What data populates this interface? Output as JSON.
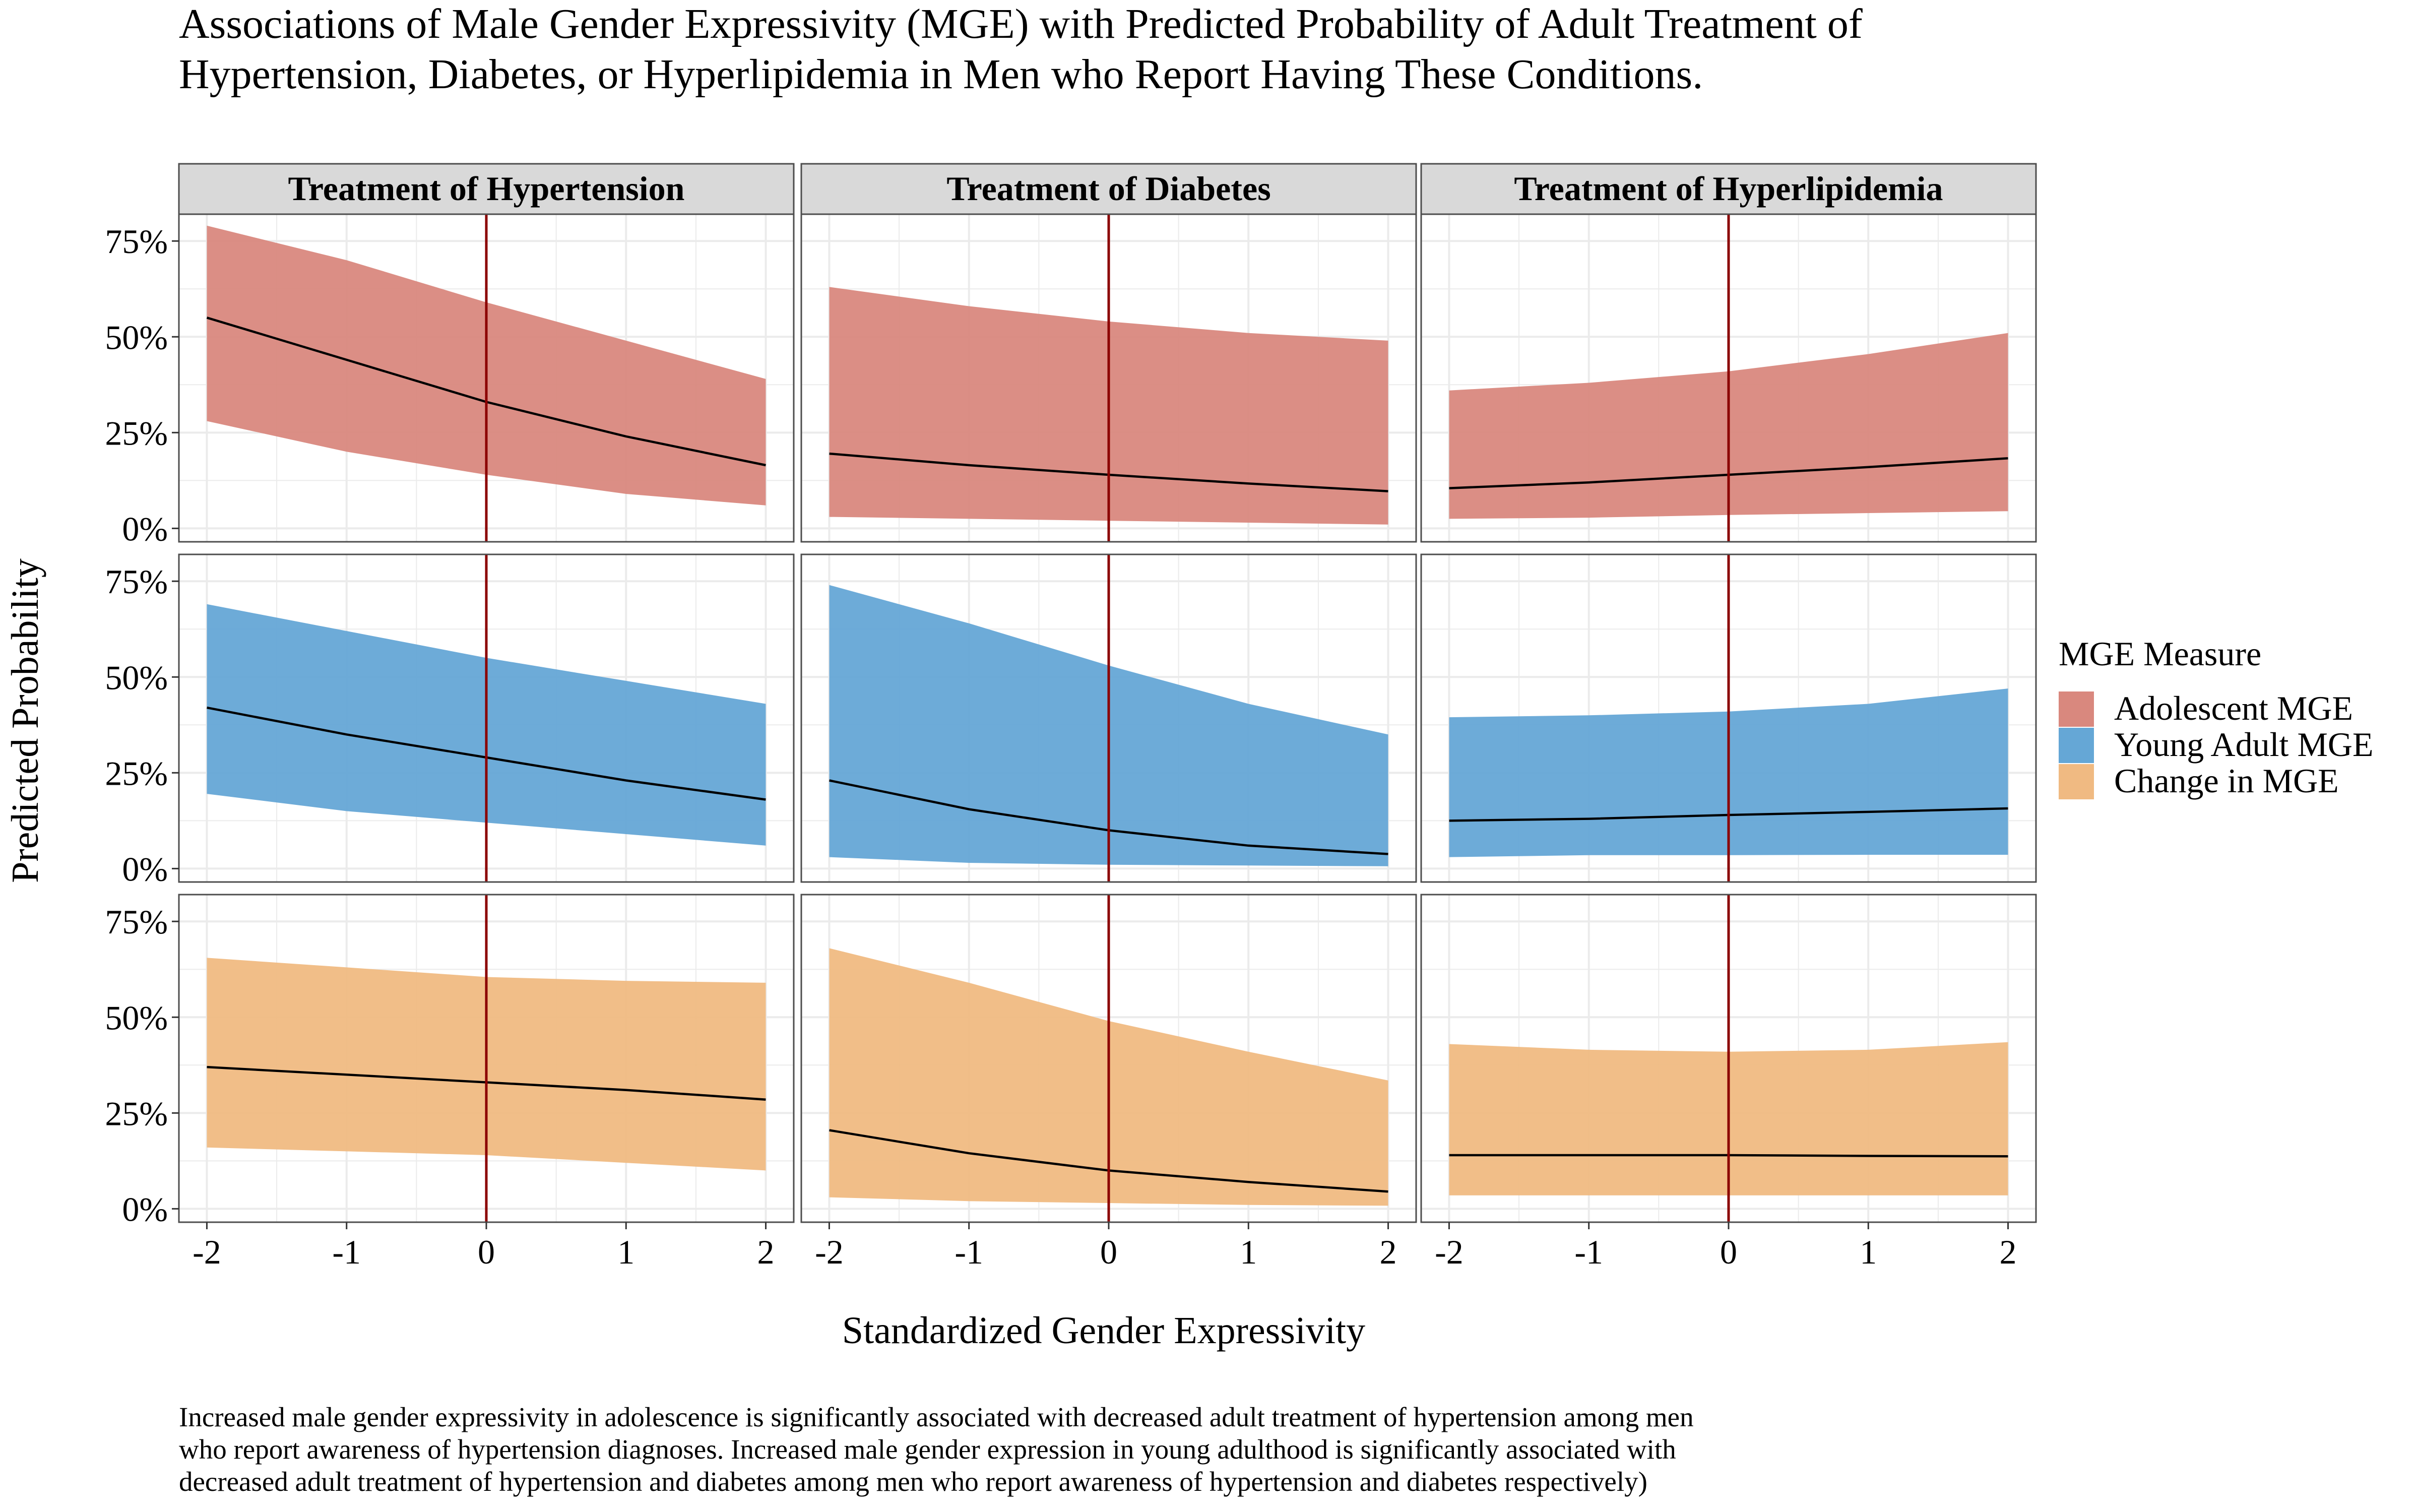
{
  "title_lines": [
    "Associations of Male Gender Expressivity (MGE) with Predicted Probability of Adult Treatment of",
    "Hypertension, Diabetes, or Hyperlipidemia in Men who Report Having These Conditions."
  ],
  "caption_lines": [
    "Increased male gender expressivity in adolescence is significantly associated with decreased adult treatment of hypertension among men",
    "who report awareness of hypertension diagnoses. Increased male gender expression in young adulthood is significantly associated with",
    "decreased adult treatment of hypertension and diabetes among men who report awareness of hypertension and diabetes respectively)"
  ],
  "xlabel": "Standardized Gender Expressivity",
  "ylabel": "Predicted Probability",
  "legend": {
    "title": "MGE Measure",
    "items": [
      {
        "label": "Adolescent MGE",
        "color": "#D9887E"
      },
      {
        "label": "Young Adult MGE",
        "color": "#65A7D6"
      },
      {
        "label": "Change in MGE",
        "color": "#F0BA82"
      }
    ]
  },
  "colors": {
    "panel_border": "#4D4D4D",
    "strip_fill": "#D9D9D9",
    "grid": "#EBEBEB",
    "line": "#000000",
    "vline": "#8B0000"
  },
  "chart_data": {
    "type": "area",
    "facet_columns": [
      "Treatment of Hypertension",
      "Treatment of Diabetes",
      "Treatment of Hyperlipidemia"
    ],
    "facet_rows": [
      "Adolescent MGE",
      "Young Adult MGE",
      "Change in MGE"
    ],
    "x": [
      -2,
      -1,
      0,
      1,
      2
    ],
    "x_ticks": [
      -2,
      -1,
      0,
      1,
      2
    ],
    "x_tick_labels": [
      "-2",
      "-1",
      "0",
      "1",
      "2"
    ],
    "xlim": [
      -2.2,
      2.2
    ],
    "y_ticks": [
      0,
      0.25,
      0.5,
      0.75
    ],
    "y_tick_labels": [
      "0%",
      "25%",
      "50%",
      "75%"
    ],
    "ylim": [
      -0.035,
      0.82
    ],
    "vline_x": 0,
    "grid": true,
    "legend_position": "right",
    "panels": [
      {
        "row": 0,
        "col": 0,
        "fit": [
          0.55,
          0.44,
          0.33,
          0.24,
          0.165
        ],
        "lower": [
          0.28,
          0.2,
          0.14,
          0.09,
          0.06
        ],
        "upper": [
          0.79,
          0.7,
          0.59,
          0.49,
          0.39
        ]
      },
      {
        "row": 0,
        "col": 1,
        "fit": [
          0.195,
          0.165,
          0.14,
          0.117,
          0.097
        ],
        "lower": [
          0.03,
          0.025,
          0.02,
          0.015,
          0.01
        ],
        "upper": [
          0.63,
          0.58,
          0.54,
          0.51,
          0.49
        ]
      },
      {
        "row": 0,
        "col": 2,
        "fit": [
          0.105,
          0.12,
          0.14,
          0.16,
          0.183
        ],
        "lower": [
          0.025,
          0.028,
          0.035,
          0.04,
          0.045
        ],
        "upper": [
          0.36,
          0.38,
          0.41,
          0.455,
          0.51
        ]
      },
      {
        "row": 1,
        "col": 0,
        "fit": [
          0.42,
          0.35,
          0.29,
          0.23,
          0.18
        ],
        "lower": [
          0.195,
          0.15,
          0.12,
          0.09,
          0.06
        ],
        "upper": [
          0.69,
          0.62,
          0.55,
          0.49,
          0.43
        ]
      },
      {
        "row": 1,
        "col": 1,
        "fit": [
          0.23,
          0.155,
          0.1,
          0.06,
          0.038
        ],
        "lower": [
          0.03,
          0.015,
          0.01,
          0.008,
          0.006
        ],
        "upper": [
          0.74,
          0.64,
          0.53,
          0.43,
          0.35
        ]
      },
      {
        "row": 1,
        "col": 2,
        "fit": [
          0.125,
          0.13,
          0.14,
          0.148,
          0.157
        ],
        "lower": [
          0.03,
          0.035,
          0.035,
          0.036,
          0.036
        ],
        "upper": [
          0.395,
          0.4,
          0.41,
          0.43,
          0.47
        ]
      },
      {
        "row": 2,
        "col": 0,
        "fit": [
          0.37,
          0.35,
          0.33,
          0.31,
          0.285
        ],
        "lower": [
          0.16,
          0.15,
          0.14,
          0.12,
          0.1
        ],
        "upper": [
          0.655,
          0.63,
          0.605,
          0.595,
          0.59
        ]
      },
      {
        "row": 2,
        "col": 1,
        "fit": [
          0.205,
          0.145,
          0.1,
          0.07,
          0.045
        ],
        "lower": [
          0.03,
          0.02,
          0.015,
          0.01,
          0.008
        ],
        "upper": [
          0.68,
          0.59,
          0.49,
          0.41,
          0.335
        ]
      },
      {
        "row": 2,
        "col": 2,
        "fit": [
          0.14,
          0.14,
          0.14,
          0.138,
          0.137
        ],
        "lower": [
          0.035,
          0.035,
          0.035,
          0.035,
          0.035
        ],
        "upper": [
          0.43,
          0.415,
          0.41,
          0.415,
          0.435
        ]
      }
    ]
  }
}
